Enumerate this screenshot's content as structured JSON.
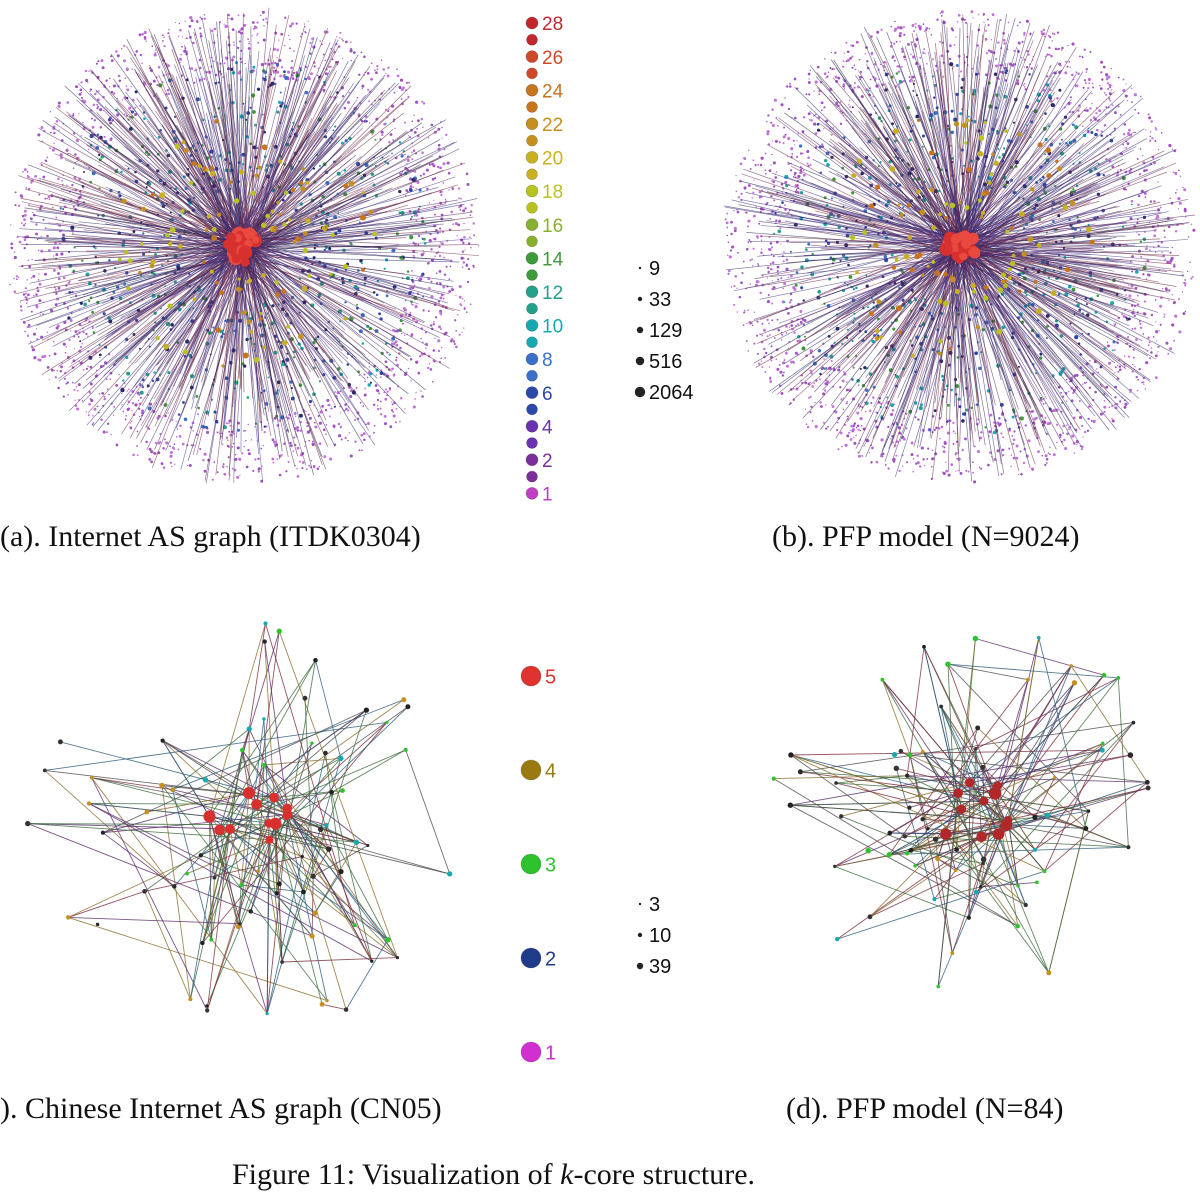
{
  "panels": {
    "a": {
      "caption": "(a).  Internet AS graph (ITDK0304)"
    },
    "b": {
      "caption": "(b).  PFP model (N=9024)"
    },
    "c": {
      "caption": ").  Chinese Internet AS graph (CN05)"
    },
    "d": {
      "caption": "(d).  PFP model (N=84)"
    }
  },
  "legend_top": {
    "core_labels": [
      "28",
      "26",
      "24",
      "22",
      "20",
      "18",
      "16",
      "14",
      "12",
      "10",
      "8",
      "6",
      "4",
      "2",
      "1"
    ],
    "core_colors": [
      "#c0282e",
      "#cc4a2a",
      "#c7741f",
      "#c49020",
      "#c8b020",
      "#b8c220",
      "#88b030",
      "#3e9a3a",
      "#22a08a",
      "#18a8b0",
      "#3a70c8",
      "#2c48a8",
      "#6a34b0",
      "#7a2f9a",
      "#c03fc0"
    ],
    "size_labels": [
      "9",
      "33",
      "129",
      "516",
      "2064"
    ]
  },
  "legend_bottom": {
    "core_labels": [
      "5",
      "4",
      "3",
      "2",
      "1"
    ],
    "core_colors": [
      "#e0322e",
      "#9a7a10",
      "#2ec22e",
      "#1e3c8a",
      "#d030d0"
    ],
    "size_labels": [
      "3",
      "10",
      "39"
    ]
  },
  "figure_caption": {
    "prefix": "Figure 11:  Visualization of ",
    "k": "k",
    "suffix": "-core structure."
  }
}
